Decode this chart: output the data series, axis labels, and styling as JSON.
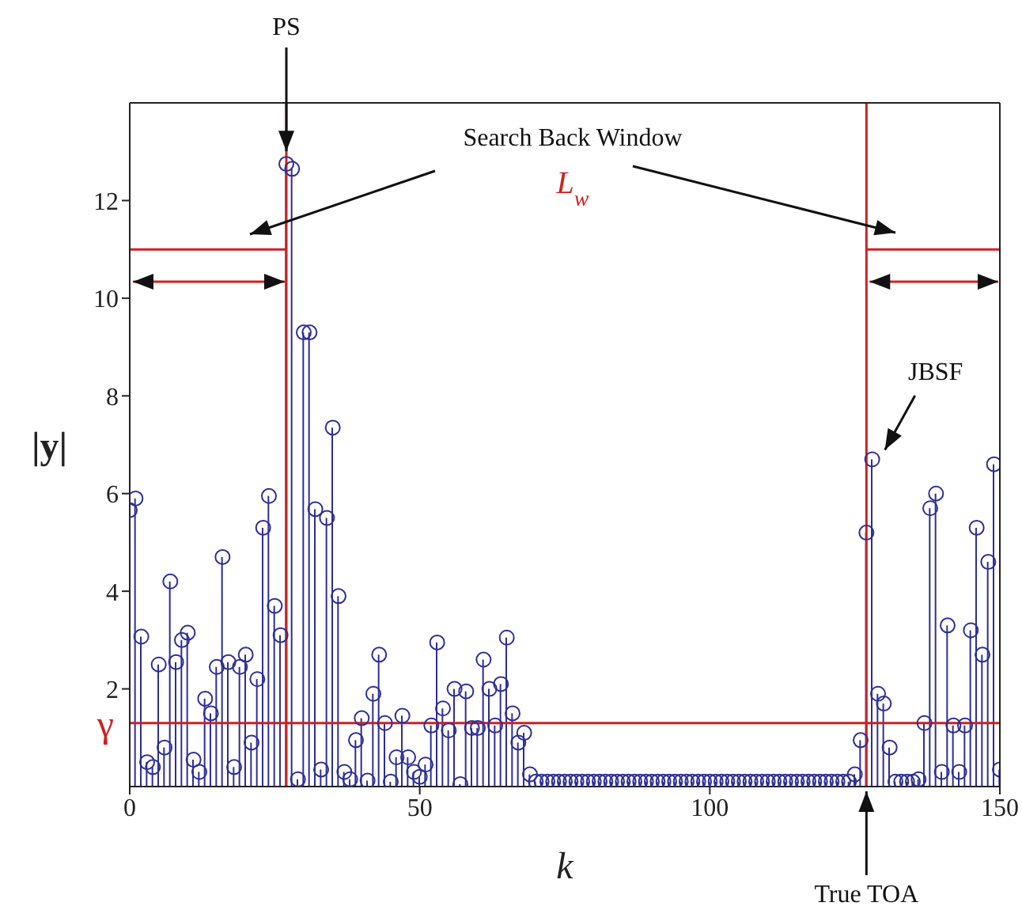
{
  "chart_data": {
    "type": "lollipop",
    "xlabel": "k",
    "ylabel": "|y|",
    "x": [
      0,
      1,
      2,
      3,
      4,
      5,
      6,
      7,
      8,
      9,
      10,
      11,
      12,
      13,
      14,
      15,
      16,
      17,
      18,
      19,
      20,
      21,
      22,
      23,
      24,
      25,
      26,
      27,
      28,
      29,
      30,
      31,
      32,
      33,
      34,
      35,
      36,
      37,
      38,
      39,
      40,
      41,
      42,
      43,
      44,
      45,
      46,
      47,
      48,
      49,
      50,
      51,
      52,
      53,
      54,
      55,
      56,
      57,
      58,
      59,
      60,
      61,
      62,
      63,
      64,
      65,
      66,
      67,
      68,
      69,
      70,
      71,
      72,
      73,
      74,
      75,
      76,
      77,
      78,
      79,
      80,
      81,
      82,
      83,
      84,
      85,
      86,
      87,
      88,
      89,
      90,
      91,
      92,
      93,
      94,
      95,
      96,
      97,
      98,
      99,
      100,
      101,
      102,
      103,
      104,
      105,
      106,
      107,
      108,
      109,
      110,
      111,
      112,
      113,
      114,
      115,
      116,
      117,
      118,
      119,
      120,
      121,
      122,
      123,
      124,
      125,
      126,
      127,
      128,
      129,
      130,
      131,
      132,
      133,
      134,
      135,
      136,
      137,
      138,
      139,
      140,
      141,
      142,
      143,
      144,
      145,
      146,
      147,
      148,
      149,
      150
    ],
    "series": [
      {
        "color": "#2e2e96",
        "marker": "circle",
        "values": [
          5.66,
          5.9,
          3.07,
          0.5,
          0.4,
          2.5,
          0.8,
          4.2,
          2.55,
          3.0,
          3.15,
          0.55,
          0.3,
          1.8,
          1.5,
          2.45,
          4.7,
          2.55,
          0.4,
          2.45,
          2.7,
          0.9,
          2.2,
          5.3,
          5.95,
          3.7,
          3.1,
          12.75,
          12.65,
          0.15,
          9.3,
          9.3,
          5.68,
          0.35,
          5.5,
          7.35,
          3.9,
          0.3,
          0.15,
          0.95,
          1.4,
          0.12,
          1.9,
          2.7,
          1.3,
          0.1,
          0.6,
          1.45,
          0.6,
          0.3,
          0.2,
          0.45,
          1.25,
          2.95,
          1.6,
          1.15,
          2.0,
          0.05,
          1.95,
          1.2,
          1.2,
          2.6,
          2.0,
          1.25,
          2.1,
          3.05,
          1.5,
          0.9,
          1.1,
          0.25,
          0.1,
          0.1,
          0.1,
          0.1,
          0.1,
          0.1,
          0.1,
          0.1,
          0.1,
          0.1,
          0.1,
          0.1,
          0.1,
          0.1,
          0.1,
          0.1,
          0.1,
          0.1,
          0.1,
          0.1,
          0.1,
          0.1,
          0.1,
          0.1,
          0.1,
          0.1,
          0.1,
          0.1,
          0.1,
          0.1,
          0.1,
          0.1,
          0.1,
          0.1,
          0.1,
          0.1,
          0.1,
          0.1,
          0.1,
          0.1,
          0.1,
          0.1,
          0.1,
          0.1,
          0.1,
          0.1,
          0.1,
          0.1,
          0.1,
          0.1,
          0.1,
          0.1,
          0.1,
          0.1,
          0.1,
          0.25,
          0.95,
          5.2,
          6.7,
          1.9,
          1.7,
          0.8,
          0.1,
          0.1,
          0.1,
          0.1,
          0.15,
          1.3,
          5.7,
          6.0,
          0.3,
          3.3,
          1.25,
          0.3,
          1.25,
          3.2,
          5.3,
          2.7,
          4.6,
          6.6,
          0.35
        ]
      },
      {
        "type": "line",
        "color": "#cc2222",
        "marker": "none",
        "x": [
          0,
          27
        ],
        "values": [
          11.0,
          11.0
        ]
      },
      {
        "type": "line",
        "color": "#cc2222",
        "marker": "none",
        "x": [
          127,
          150
        ],
        "values": [
          11.0,
          11.0
        ]
      }
    ],
    "xlim": [
      0,
      150
    ],
    "xticks": [
      0,
      50,
      100,
      150
    ],
    "ylim": [
      0,
      14
    ],
    "yticks": [
      2,
      4,
      6,
      8,
      10,
      12
    ],
    "ref_lines": [
      {
        "axis": "x",
        "value": 27,
        "color": "#cc2222"
      },
      {
        "axis": "x",
        "value": 127,
        "color": "#cc2222"
      },
      {
        "axis": "y",
        "value": 1.3,
        "label": "γ",
        "color": "#cc2222"
      }
    ],
    "annotations": [
      {
        "text": "PS",
        "x": 27,
        "y": 12.75
      },
      "Search Back Window",
      "L$_{w}$",
      "JBSF",
      "True TOA"
    ]
  }
}
